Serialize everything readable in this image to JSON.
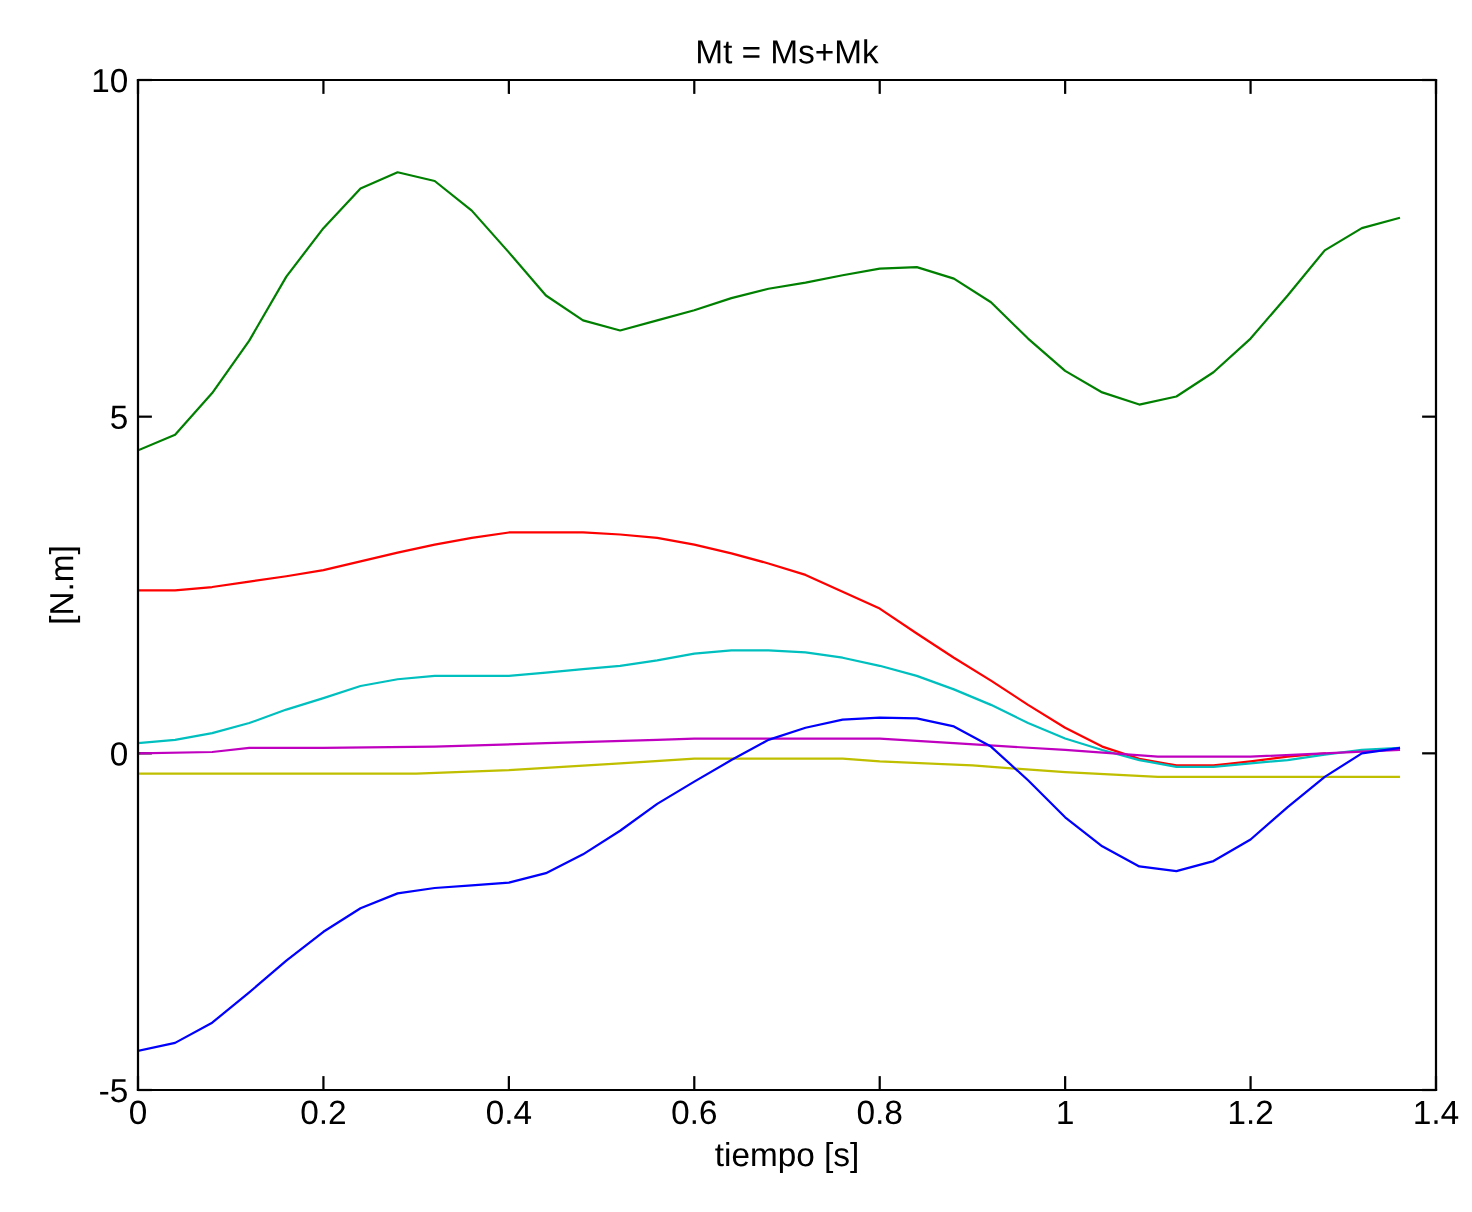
{
  "chart_data": {
    "type": "line",
    "title": "Mt = Ms+Mk",
    "xlabel": "tiempo [s]",
    "ylabel": "[N.m]",
    "xlim": [
      0,
      1.4
    ],
    "xticks": [
      0,
      0.2,
      0.4,
      0.6,
      0.8,
      1,
      1.2,
      1.4
    ],
    "ylim": [
      -5,
      10
    ],
    "yticks": [
      -5,
      0,
      5,
      10
    ],
    "grid": false,
    "legend": false,
    "marker": "none",
    "line_style": "solid",
    "x": [
      0,
      0.04,
      0.08,
      0.12,
      0.16,
      0.2,
      0.24,
      0.28,
      0.32,
      0.36,
      0.4,
      0.44,
      0.48,
      0.52,
      0.56,
      0.6,
      0.64,
      0.68,
      0.72,
      0.76,
      0.8,
      0.84,
      0.88,
      0.92,
      0.96,
      1.0,
      1.04,
      1.08,
      1.12,
      1.16,
      1.2,
      1.24,
      1.28,
      1.32,
      1.36
    ],
    "series": [
      {
        "color": "#008000",
        "values": [
          4.5,
          4.73,
          5.35,
          6.13,
          7.08,
          7.8,
          8.39,
          8.63,
          8.5,
          8.06,
          7.44,
          6.8,
          6.43,
          6.28,
          6.43,
          6.58,
          6.76,
          6.9,
          6.99,
          7.1,
          7.2,
          7.22,
          7.05,
          6.7,
          6.16,
          5.68,
          5.36,
          5.18,
          5.3,
          5.66,
          6.16,
          6.8,
          7.47,
          7.8,
          7.95
        ]
      },
      {
        "color": "#ff0000",
        "values": [
          2.42,
          2.42,
          2.47,
          2.55,
          2.63,
          2.72,
          2.85,
          2.98,
          3.1,
          3.2,
          3.28,
          3.28,
          3.28,
          3.25,
          3.2,
          3.1,
          2.97,
          2.82,
          2.65,
          2.4,
          2.15,
          1.78,
          1.42,
          1.08,
          0.72,
          0.38,
          0.1,
          -0.08,
          -0.18,
          -0.18,
          -0.12,
          -0.05,
          0.0,
          null,
          null
        ]
      },
      {
        "color": "#00bfbf",
        "values": [
          0.15,
          0.2,
          0.3,
          0.45,
          0.65,
          0.82,
          1.0,
          1.1,
          1.15,
          1.15,
          1.15,
          1.2,
          1.25,
          1.3,
          1.38,
          1.48,
          1.53,
          1.53,
          1.5,
          1.42,
          1.3,
          1.15,
          0.95,
          0.72,
          0.45,
          0.22,
          0.05,
          -0.1,
          -0.2,
          -0.2,
          -0.15,
          -0.1,
          -0.02,
          0.05,
          0.08
        ]
      },
      {
        "color": "#bf00bf",
        "x": [
          0,
          0.08,
          0.12,
          0.2,
          0.32,
          0.44,
          0.56,
          0.6,
          0.8,
          0.88,
          1.0,
          1.1,
          1.2,
          1.36
        ],
        "values": [
          0.0,
          0.02,
          0.08,
          0.08,
          0.1,
          0.15,
          0.2,
          0.22,
          0.22,
          0.15,
          0.05,
          -0.05,
          -0.05,
          0.05
        ]
      },
      {
        "color": "#bfbf00",
        "x": [
          0,
          0.3,
          0.4,
          0.52,
          0.6,
          0.76,
          0.8,
          0.9,
          1.0,
          1.1,
          1.36
        ],
        "values": [
          -0.3,
          -0.3,
          -0.25,
          -0.15,
          -0.08,
          -0.08,
          -0.12,
          -0.18,
          -0.28,
          -0.35,
          -0.35
        ]
      },
      {
        "color": "#0000ff",
        "values": [
          -4.42,
          -4.3,
          -4.0,
          -3.55,
          -3.08,
          -2.65,
          -2.3,
          -2.08,
          -2.0,
          -1.96,
          -1.92,
          -1.78,
          -1.5,
          -1.15,
          -0.75,
          -0.42,
          -0.1,
          0.2,
          0.38,
          0.5,
          0.53,
          0.52,
          0.4,
          0.1,
          -0.4,
          -0.95,
          -1.38,
          -1.68,
          -1.75,
          -1.6,
          -1.28,
          -0.8,
          -0.35,
          0.0,
          0.08
        ]
      }
    ]
  }
}
